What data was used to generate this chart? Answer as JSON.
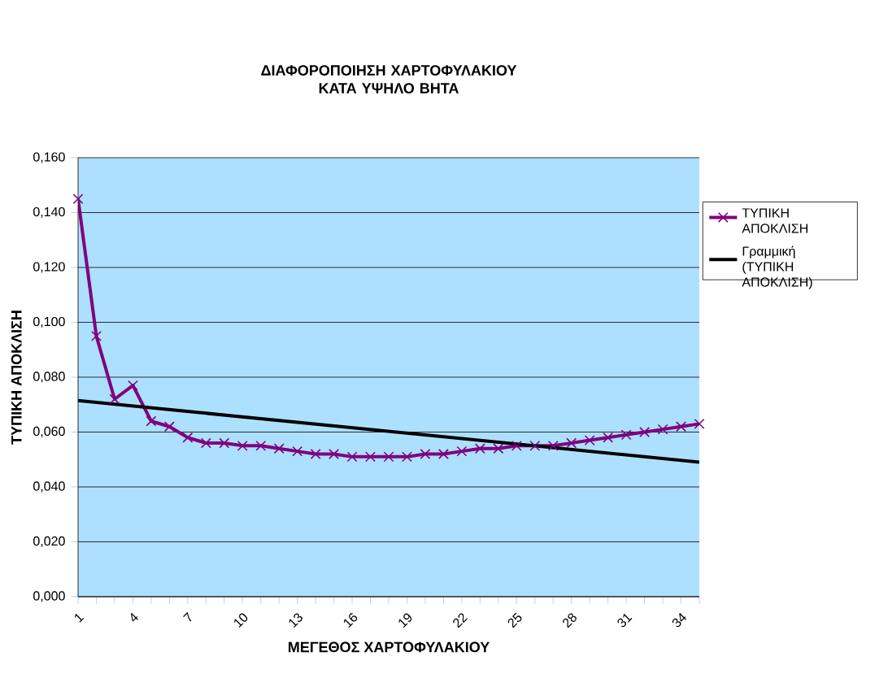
{
  "chart_data": {
    "type": "line",
    "title": "ΔΙΑΦΟΡΟΠΟΙΗΣΗ ΧΑΡΤΟΦΥΛΑΚΙΟΥ ΚΑΤΑ ΥΨΗΛΟ  ΒΗΤΑ",
    "xlabel": "ΜΕΓΕΘΟΣ ΧΑΡΤΟΦΥΛΑΚΙΟΥ",
    "ylabel": "ΤΥΠΙΚΗ ΑΠΟΚΛΙΣΗ",
    "series": [
      {
        "name": "ΤΥΠΙΚΗ ΑΠΟΚΛΙΣΗ",
        "color": "#800080",
        "marker": "cross",
        "x": [
          1,
          2,
          3,
          4,
          5,
          6,
          7,
          8,
          9,
          10,
          11,
          12,
          13,
          14,
          15,
          16,
          17,
          18,
          19,
          20,
          21,
          22,
          23,
          24,
          25,
          26,
          27,
          28,
          29,
          30,
          31,
          32,
          33,
          34,
          35
        ],
        "values": [
          0.145,
          0.095,
          0.072,
          0.077,
          0.064,
          0.062,
          0.058,
          0.056,
          0.056,
          0.055,
          0.055,
          0.054,
          0.053,
          0.052,
          0.052,
          0.051,
          0.051,
          0.051,
          0.051,
          0.052,
          0.052,
          0.053,
          0.054,
          0.054,
          0.055,
          0.055,
          0.055,
          0.056,
          0.057,
          0.058,
          0.059,
          0.06,
          0.061,
          0.062,
          0.063
        ]
      },
      {
        "name": "Γραμμική (ΤΥΠΙΚΗ ΑΠΟΚΛΙΣΗ)",
        "color": "#000000",
        "marker": "none",
        "x": [
          1,
          35
        ],
        "values": [
          0.0715,
          0.049
        ]
      }
    ],
    "xlim": [
      1,
      35
    ],
    "xticks": [
      1,
      {
        "value": 2,
        "label": null
      },
      {
        "value": 3,
        "label": null
      },
      4,
      {
        "value": 5,
        "label": null
      },
      {
        "value": 6,
        "label": null
      },
      7,
      {
        "value": 8,
        "label": null
      },
      {
        "value": 9,
        "label": null
      },
      10,
      {
        "value": 11,
        "label": null
      },
      {
        "value": 12,
        "label": null
      },
      13,
      {
        "value": 14,
        "label": null
      },
      {
        "value": 15,
        "label": null
      },
      16,
      {
        "value": 17,
        "label": null
      },
      {
        "value": 18,
        "label": null
      },
      19,
      {
        "value": 20,
        "label": null
      },
      {
        "value": 21,
        "label": null
      },
      22,
      {
        "value": 23,
        "label": null
      },
      {
        "value": 24,
        "label": null
      },
      25,
      {
        "value": 26,
        "label": null
      },
      {
        "value": 27,
        "label": null
      },
      28,
      {
        "value": 29,
        "label": null
      },
      {
        "value": 30,
        "label": null
      },
      31,
      {
        "value": 32,
        "label": null
      },
      {
        "value": 33,
        "label": null
      },
      34,
      {
        "value": 35,
        "label": null
      }
    ],
    "ylim": [
      0,
      0.16
    ],
    "yticks": [
      {
        "value": 0,
        "label": "0,000"
      },
      {
        "value": 0.02,
        "label": "0,020"
      },
      {
        "value": 0.04,
        "label": "0,040"
      },
      {
        "value": 0.06,
        "label": "0,060"
      },
      {
        "value": 0.08,
        "label": "0,080"
      },
      {
        "value": 0.1,
        "label": "0,100"
      },
      {
        "value": 0.12,
        "label": "0,120"
      },
      {
        "value": 0.14,
        "label": "0,140"
      },
      {
        "value": 0.16,
        "label": "0,160"
      }
    ],
    "grid": "y",
    "legend": "right",
    "line_style": "solid"
  }
}
